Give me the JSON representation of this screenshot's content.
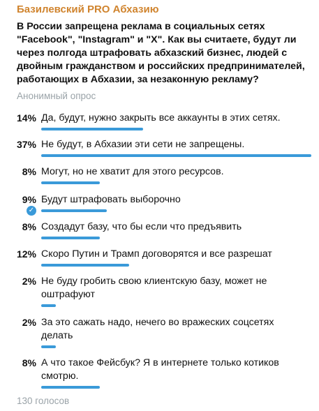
{
  "channel_name": "Базилевский PRO Абхазию",
  "poll": {
    "question": "В России запрещена реклама в социальных сетях \"Facebook\", \"Instagram\" и \"X\". Как вы считаете, будут ли через полгода штрафовать абхазский бизнес, людей с двойным гражданством  и российских предпринимателей, работающих в Абхазии, за незаконную рекламу?",
    "type_label": "Анонимный опрос",
    "options": [
      {
        "percent_label": "14%",
        "percent": 14,
        "text": "Да, будут, нужно закрыть все аккаунты в этих сетях.",
        "chosen": false
      },
      {
        "percent_label": "37%",
        "percent": 37,
        "text": "Не будут, в Абхазии эти сети не запрещены.",
        "chosen": false
      },
      {
        "percent_label": "8%",
        "percent": 8,
        "text": "Могут, но не хватит для этого ресурсов.",
        "chosen": false
      },
      {
        "percent_label": "9%",
        "percent": 9,
        "text": "Будут штрафовать выборочно",
        "chosen": true
      },
      {
        "percent_label": "8%",
        "percent": 8,
        "text": "Создадут базу, что бы если что предъявить",
        "chosen": false
      },
      {
        "percent_label": "12%",
        "percent": 12,
        "text": "Скоро Путин и Трамп договорятся и все разрешат",
        "chosen": false
      },
      {
        "percent_label": "2%",
        "percent": 2,
        "text": "Не буду гробить свою клиентскую базу, может не оштрафуют",
        "chosen": false
      },
      {
        "percent_label": "2%",
        "percent": 2,
        "text": "За это сажать надо, нечего во вражеских соцсетях делать",
        "chosen": false
      },
      {
        "percent_label": "8%",
        "percent": 8,
        "text": "А что такое Фейсбук? Я в интернете только котиков смотрю.",
        "chosen": false
      }
    ],
    "total_votes": "130 голосов",
    "accent_color": "#3a9ad9",
    "channel_color": "#d0842e",
    "check_icon": "check-circle-icon"
  }
}
